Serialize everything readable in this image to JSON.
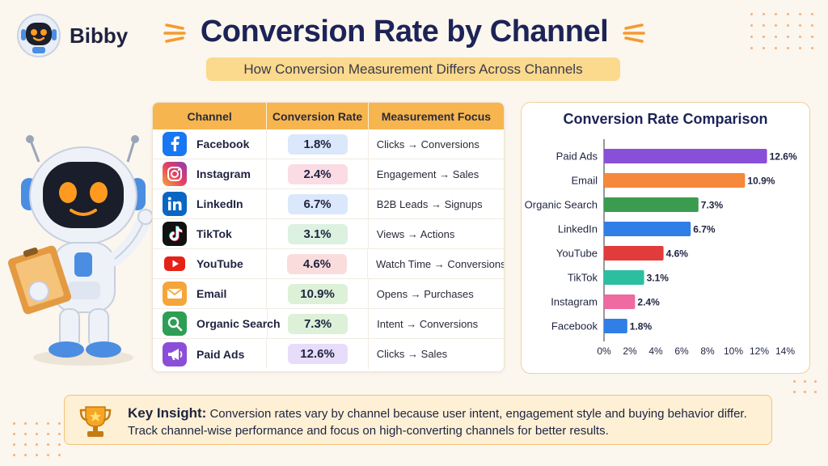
{
  "brand": {
    "name": "Bibby"
  },
  "header": {
    "title": "Conversion Rate by Channel",
    "subtitle": "How Conversion Measurement Differs Across Channels"
  },
  "table": {
    "headers": [
      "Channel",
      "Conversion Rate",
      "Measurement Focus"
    ],
    "rows": [
      {
        "channel": "Facebook",
        "rate": "1.8%",
        "focus": "Clicks → Conversions",
        "icon": "facebook-icon",
        "icon_color": "#1877f2",
        "pill_color": "#dbe8fb"
      },
      {
        "channel": "Instagram",
        "rate": "2.4%",
        "focus": "Engagement → Sales",
        "icon": "instagram-icon",
        "icon_color": "#d6337a",
        "pill_color": "#fbdbe4"
      },
      {
        "channel": "LinkedIn",
        "rate": "6.7%",
        "focus": "B2B Leads → Signups",
        "icon": "linkedin-icon",
        "icon_color": "#0a66c2",
        "pill_color": "#dbe8fb"
      },
      {
        "channel": "TikTok",
        "rate": "3.1%",
        "focus": "Views → Actions",
        "icon": "tiktok-icon",
        "icon_color": "#111111",
        "pill_color": "#dcf1e0"
      },
      {
        "channel": "YouTube",
        "rate": "4.6%",
        "focus": "Watch Time → Conversions",
        "icon": "youtube-icon",
        "icon_color": "#e62117",
        "pill_color": "#fbdcdc"
      },
      {
        "channel": "Email",
        "rate": "10.9%",
        "focus": "Opens → Purchases",
        "icon": "email-icon",
        "icon_color": "#f6a53a",
        "pill_color": "#dcf1d7"
      },
      {
        "channel": "Organic Search",
        "rate": "7.3%",
        "focus": "Intent → Conversions",
        "icon": "search-icon",
        "icon_color": "#2e9e55",
        "pill_color": "#dcf1d7"
      },
      {
        "channel": "Paid Ads",
        "rate": "12.6%",
        "focus": "Clicks → Sales",
        "icon": "megaphone-icon",
        "icon_color": "#8a4fd8",
        "pill_color": "#e7dcfa"
      }
    ]
  },
  "chart_data": {
    "type": "bar",
    "orientation": "horizontal",
    "title": "Conversion Rate Comparison",
    "categories": [
      "Paid Ads",
      "Email",
      "Organic Search",
      "LinkedIn",
      "YouTube",
      "TikTok",
      "Instagram",
      "Facebook"
    ],
    "values": [
      12.6,
      10.9,
      7.3,
      6.7,
      4.6,
      3.1,
      2.4,
      1.8
    ],
    "value_labels": [
      "12.6%",
      "10.9%",
      "7.3%",
      "6.7%",
      "4.6%",
      "3.1%",
      "2.4%",
      "1.8%"
    ],
    "colors": [
      "#8a4fd8",
      "#f5883a",
      "#3b9b4f",
      "#2f7fe6",
      "#e23b3b",
      "#2bbfa0",
      "#ee6aa0",
      "#2f7fe6"
    ],
    "xlim": [
      0,
      14
    ],
    "xticks": [
      0,
      2,
      4,
      6,
      8,
      10,
      12,
      14
    ],
    "xtick_labels": [
      "0%",
      "2%",
      "4%",
      "6%",
      "8%",
      "10%",
      "12%",
      "14%"
    ],
    "grid": false,
    "legend": "none"
  },
  "insight": {
    "label": "Key Insight:",
    "line1": " Conversion rates vary by channel because user intent, engagement style and buying behavior differ.",
    "line2": "Track channel-wise performance and focus on high-converting channels for better results."
  }
}
